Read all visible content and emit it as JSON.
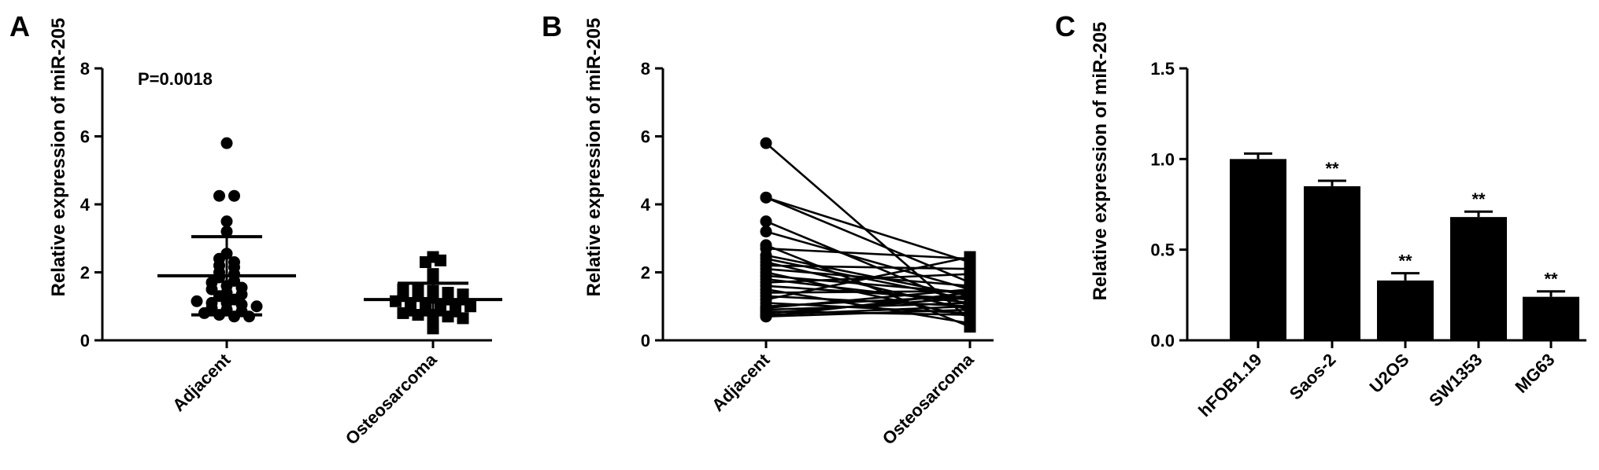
{
  "chart_data": [
    {
      "panel": "A",
      "type": "scatter",
      "ylabel": "Relative expression of miR-205",
      "ylim": [
        0,
        8
      ],
      "yticks": [
        "0",
        "2",
        "4",
        "6",
        "8"
      ],
      "categories": [
        "Adjacent",
        "Osteosarcoma"
      ],
      "annotation": "P=0.0018",
      "summary": [
        {
          "category": "Adjacent",
          "mean": 1.9,
          "sd_low": 0.75,
          "sd_high": 3.05
        },
        {
          "category": "Osteosarcoma",
          "mean": 1.2,
          "sd_low": 0.75,
          "sd_high": 1.68
        }
      ],
      "series": [
        {
          "category": "Adjacent",
          "marker": "circle",
          "values": [
            5.8,
            4.25,
            4.25,
            3.5,
            3.2,
            2.55,
            2.4,
            2.3,
            2.2,
            2.15,
            2.0,
            1.95,
            1.85,
            1.75,
            1.7,
            1.6,
            1.55,
            1.5,
            1.4,
            1.35,
            1.3,
            1.2,
            1.15,
            1.1,
            1.1,
            1.05,
            1.0,
            0.95,
            0.9,
            0.85,
            0.8,
            0.75,
            0.7,
            0.7
          ]
        },
        {
          "category": "Osteosarcoma",
          "marker": "square",
          "values": [
            2.45,
            2.3,
            2.35,
            1.95,
            1.8,
            1.5,
            1.5,
            1.45,
            1.4,
            1.35,
            1.3,
            1.3,
            1.25,
            1.2,
            1.2,
            1.15,
            1.1,
            1.1,
            1.05,
            1.0,
            1.0,
            0.95,
            0.9,
            0.9,
            0.85,
            0.8,
            0.75,
            0.75,
            0.7,
            0.65,
            0.6,
            0.35
          ]
        }
      ]
    },
    {
      "panel": "B",
      "type": "line",
      "ylabel": "Relative expression of miR-205",
      "ylim": [
        0,
        8
      ],
      "yticks": [
        "0",
        "2",
        "4",
        "6",
        "8"
      ],
      "categories": [
        "Adjacent",
        "Osteosarcoma"
      ],
      "pairs": [
        [
          5.8,
          0.6
        ],
        [
          4.2,
          2.3
        ],
        [
          4.2,
          1.7
        ],
        [
          3.5,
          1.0
        ],
        [
          3.2,
          1.5
        ],
        [
          2.8,
          0.4
        ],
        [
          2.7,
          2.4
        ],
        [
          2.5,
          1.3
        ],
        [
          2.4,
          1.2
        ],
        [
          2.3,
          0.9
        ],
        [
          2.2,
          2.1
        ],
        [
          2.1,
          1.6
        ],
        [
          2.0,
          0.7
        ],
        [
          1.9,
          1.4
        ],
        [
          1.8,
          1.1
        ],
        [
          1.7,
          1.95
        ],
        [
          1.6,
          1.2
        ],
        [
          1.5,
          0.5
        ],
        [
          1.4,
          1.45
        ],
        [
          1.3,
          1.0
        ],
        [
          1.2,
          2.45
        ],
        [
          1.1,
          0.8
        ],
        [
          1.0,
          1.3
        ],
        [
          0.95,
          1.5
        ],
        [
          0.9,
          1.1
        ],
        [
          0.85,
          0.75
        ],
        [
          0.8,
          1.25
        ],
        [
          0.75,
          1.0
        ],
        [
          0.7,
          1.4
        ],
        [
          0.7,
          0.9
        ]
      ]
    },
    {
      "panel": "C",
      "type": "bar",
      "ylabel": "Relative expression of miR-205",
      "ylim": [
        0,
        1.5
      ],
      "yticks": [
        "0.0",
        "0.5",
        "1.0",
        "1.5"
      ],
      "categories": [
        "hFOB1.19",
        "Saos-2",
        "U2OS",
        "SW1353",
        "MG63"
      ],
      "values": [
        1.0,
        0.85,
        0.33,
        0.68,
        0.24
      ],
      "errors": [
        0.03,
        0.03,
        0.04,
        0.03,
        0.03
      ],
      "significance": [
        "",
        "**",
        "**",
        "**",
        "**"
      ]
    }
  ]
}
